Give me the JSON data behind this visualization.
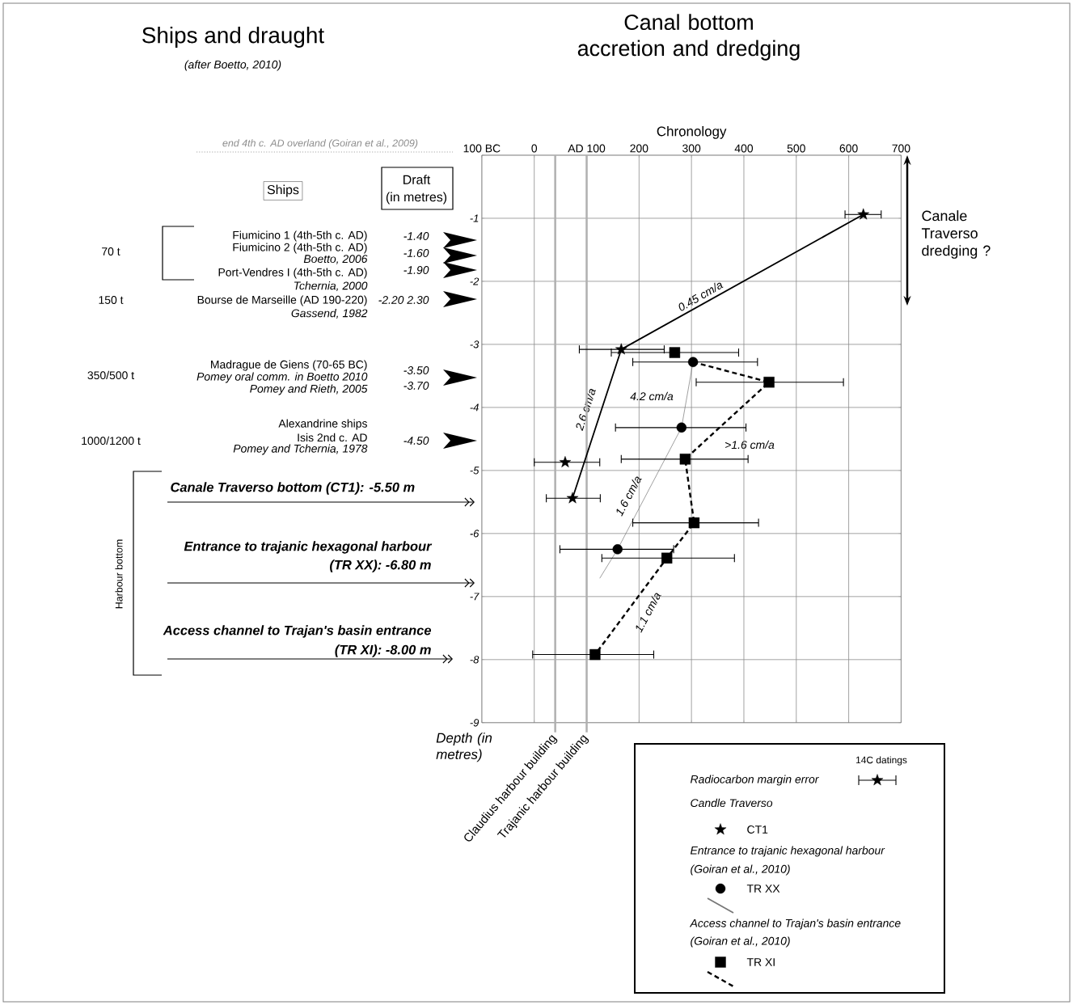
{
  "chart_data": {
    "type": "scatter",
    "title": "Canal bottom accretion and dredging",
    "xlabel": "Chronology",
    "ylabel": "Depth (in metres)",
    "xlim": [
      -100,
      700
    ],
    "ylim": [
      -9,
      0
    ],
    "xticks": [
      {
        "value": -100,
        "label": "100 BC"
      },
      0,
      {
        "value": 100,
        "label": "AD 100"
      },
      200,
      300,
      400,
      500,
      600,
      700
    ],
    "yticks": [
      -9,
      -8,
      -7,
      -6,
      -5,
      -4,
      -3,
      -2,
      -1,
      {
        "value": 0,
        "label": null
      }
    ],
    "grid": true,
    "legend": "bottom right",
    "series": [
      {
        "name": "CT1",
        "marker": "star",
        "color": "#000000",
        "x": [
          628,
          166,
          59,
          73
        ],
        "values": [
          -0.94,
          -3.08,
          -4.87,
          -5.44
        ],
        "xerrors": [
          [
            593,
            662
          ],
          [
            86,
            248
          ],
          [
            0,
            125
          ],
          [
            23,
            126
          ]
        ]
      },
      {
        "name": "TR XX",
        "marker": "circle",
        "color": "#000000",
        "x": [
          303,
          281,
          159
        ],
        "values": [
          -3.28,
          -4.32,
          -6.25
        ],
        "xerrors": [
          [
            188,
            426
          ],
          [
            155,
            404
          ],
          [
            49,
            266
          ]
        ]
      },
      {
        "name": "TR XI",
        "marker": "square",
        "color": "#000000",
        "x": [
          268,
          448,
          288,
          305,
          253,
          116
        ],
        "values": [
          -3.13,
          -3.6,
          -4.82,
          -5.83,
          -6.39,
          -7.92
        ],
        "xerrors": [
          [
            147,
            390
          ],
          [
            309,
            590
          ],
          [
            166,
            408
          ],
          [
            188,
            428
          ],
          [
            129,
            382
          ],
          [
            -3,
            228
          ]
        ]
      },
      {
        "type": "line",
        "line_style": "solid",
        "color": "#000000",
        "x": [
          628,
          166,
          73
        ],
        "values": [
          -0.94,
          -3.08,
          -5.44
        ]
      },
      {
        "type": "line",
        "line_style": "solid",
        "color": "#777777",
        "x": [
          303,
          281,
          159,
          125
        ],
        "values": [
          -3.28,
          -4.32,
          -6.25,
          -6.71
        ]
      },
      {
        "type": "line",
        "line_style": "dashed",
        "color": "#000000",
        "x": [
          303,
          448,
          288,
          305,
          253,
          116
        ],
        "values": [
          -3.28,
          -3.6,
          -4.82,
          -5.83,
          -6.39,
          -7.92
        ]
      }
    ],
    "ref_lines": [
      {
        "axis": "x",
        "value": 40,
        "label": "Claudius harbour building",
        "color": "#b0b0b0"
      },
      {
        "axis": "x",
        "value": 100,
        "label": "Trajanic harbour building",
        "color": "#b0b0b0"
      }
    ],
    "annotations": [
      "Ships and draught",
      "(after Boetto, 2010)",
      "Ships",
      "Draft",
      "70 t",
      "150 t",
      "350/500 t",
      "1000/1200 t",
      "Fiumicino 1 (4th-5th c. AD)",
      "Fiumicino 2 (4th-5th c. AD)",
      "Boetto, 2006",
      "Port-Vendres I (4th-5th c. AD)",
      "Tchernia, 2000",
      "Bourse de Marseille (AD 190-220)",
      "Gassend, 1982",
      "Madrague de Giens (70-65 BC)",
      "Pomey oral comm. in Boetto 2010",
      "Pomey and Rieth, 2005",
      "Alexandrine ships",
      "Isis 2nd c. AD",
      "Pomey and Tchernia, 1978",
      "-1.40",
      "-1.60",
      "-1.90",
      "-2.20 2.30",
      "-3.50",
      "-3.70",
      "-4.50",
      "Harbour bottom",
      "Canale Traverso bottom (CT1): -5.50 m",
      "Entrance to trajanic hexagonal harbour",
      "(TR XX): -6.80 m",
      "Access channel to Trajan's basin entrance",
      "(TR XI): -8.00 m",
      "Canale Traverso dredging ?",
      "end 4th c. AD overland (Goiran et al., 2009)",
      "14C datings",
      "Radiocarbon margin error",
      "Candle Traverso",
      "Entrance to trajanic hexagonal harbour",
      "(Goiran et al., 2010)",
      "Access channel to Trajan's basin entrance",
      "(Goiran et al., 2010)",
      "4.2 cm/a",
      ">1.6 cm/a",
      "0.45 cm/a",
      "2.6 cm/a",
      "1.6 cm/a",
      "1.1 cm/a",
      "(in metres)"
    ]
  }
}
